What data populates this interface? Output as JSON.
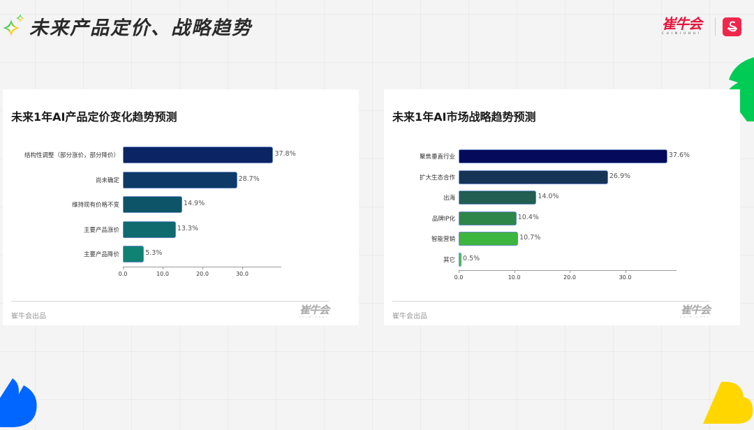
{
  "header": {
    "title": "未来产品定价、战略趋势",
    "brand_name": "崔牛会",
    "brand_sub": "CUINIUHUI",
    "brand_app_icon": "s-logo-icon"
  },
  "colors": {
    "brand_red": "#e4173e",
    "deco_green": "#00cc55",
    "deco_blue": "#0066ff",
    "deco_yellow": "#ffd600"
  },
  "cards": [
    {
      "title": "未来1年AI产品定价变化趋势预测",
      "footer_text": "崔牛会出品",
      "footer_logo": "崔牛会",
      "footer_logo_sub": "CUINIUHUI"
    },
    {
      "title": "未来1年AI市场战略趋势预测",
      "footer_text": "崔牛会出品",
      "footer_logo": "崔牛会",
      "footer_logo_sub": "CUINIUHUI"
    }
  ],
  "chart_data": [
    {
      "type": "bar",
      "orientation": "horizontal",
      "title": "未来1年AI产品定价变化趋势预测",
      "categories": [
        "结构性调整（部分涨价，部分降价）",
        "尚未确定",
        "维持现有价格不变",
        "主要产品涨价",
        "主要产品降价"
      ],
      "values": [
        37.8,
        28.7,
        14.9,
        13.3,
        5.3
      ],
      "value_labels": [
        "37.8%",
        "28.7%",
        "14.9%",
        "13.3%",
        "5.3%"
      ],
      "colors": [
        "#0b2463",
        "#0d3a66",
        "#0e5468",
        "#0f6b6e",
        "#108274"
      ],
      "xticks": [
        "0.0",
        "10.0",
        "20.0",
        "30.0"
      ],
      "xlim": [
        0,
        40
      ],
      "xlabel": "",
      "ylabel": "",
      "grid": false
    },
    {
      "type": "bar",
      "orientation": "horizontal",
      "title": "未来1年AI市场战略趋势预测",
      "categories": [
        "聚焦垂直行业",
        "扩大生态合作",
        "出海",
        "品牌IP化",
        "智能营销",
        "其它"
      ],
      "values": [
        37.6,
        26.9,
        14.0,
        10.4,
        10.7,
        0.5
      ],
      "value_labels": [
        "37.6%",
        "26.9%",
        "14.0%",
        "10.4%",
        "10.7%",
        "0.5%"
      ],
      "colors": [
        "#060a5a",
        "#163456",
        "#225e52",
        "#2e8748",
        "#3db63f",
        "#3fd03f"
      ],
      "xticks": [
        "0.0",
        "10.0",
        "20.0",
        "30.0"
      ],
      "xlim": [
        0,
        40
      ],
      "xlabel": "",
      "ylabel": "",
      "grid": false
    }
  ]
}
